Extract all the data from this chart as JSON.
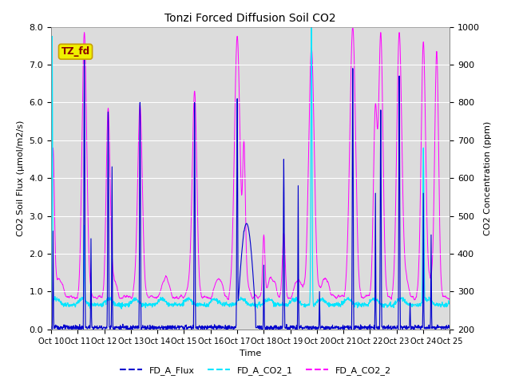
{
  "title": "Tonzi Forced Diffusion Soil CO2",
  "xlabel": "Time",
  "ylabel_left": "CO2 Soil Flux (μmol/m2/s)",
  "ylabel_right": "CO2 Concentration (ppm)",
  "ylim_left": [
    0.0,
    8.0
  ],
  "ylim_right": [
    200,
    1000
  ],
  "yticks_left": [
    0.0,
    1.0,
    2.0,
    3.0,
    4.0,
    5.0,
    6.0,
    7.0,
    8.0
  ],
  "yticks_right": [
    200,
    300,
    400,
    500,
    600,
    700,
    800,
    900,
    1000
  ],
  "color_flux": "#0000cd",
  "color_co2_1": "#00e5ff",
  "color_co2_2": "#ff00ff",
  "legend_labels": [
    "FD_A_Flux",
    "FD_A_CO2_1",
    "FD_A_CO2_2"
  ],
  "site_label": "TZ_fd",
  "background_color": "#dcdcdc",
  "fig_background": "#ffffff",
  "n_days": 15,
  "pts_per_day": 96
}
